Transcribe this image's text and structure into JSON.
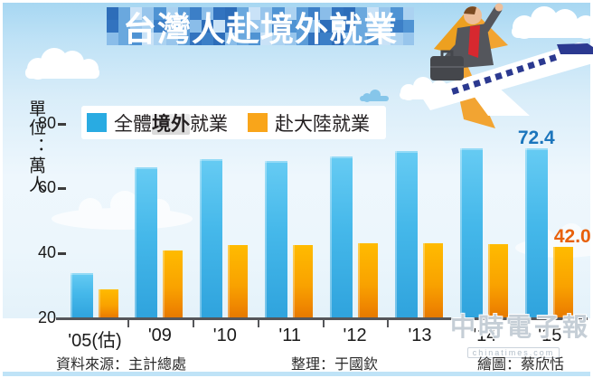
{
  "title": "台灣人赴境外就業",
  "y_axis": {
    "unit_label": "單位：萬人",
    "ticks": [
      80,
      60,
      40,
      20
    ]
  },
  "legend": {
    "items": [
      {
        "color": "#29abe2",
        "prefix": "全體",
        "emphasis": "境外",
        "suffix": "就業"
      },
      {
        "color": "#f9a51a",
        "prefix": "赴大陸就業",
        "emphasis": "",
        "suffix": ""
      }
    ]
  },
  "chart_data": {
    "type": "bar",
    "title": "台灣人赴境外就業",
    "categories": [
      "'05(估)",
      "'09",
      "'10",
      "'11",
      "'12",
      "'13",
      "'14",
      "'15"
    ],
    "series": [
      {
        "name": "全體境外就業",
        "color": "#45b8ea",
        "values": [
          34.0,
          66.5,
          69.0,
          68.5,
          70.0,
          71.5,
          72.4,
          72.4
        ]
      },
      {
        "name": "赴大陸就業",
        "color": "#f9a51a",
        "values": [
          29.0,
          41.0,
          42.5,
          42.5,
          43.0,
          43.2,
          42.8,
          42.0
        ]
      }
    ],
    "ylabel": "單位：萬人",
    "ylim": [
      20,
      80
    ],
    "grid": false,
    "legend_position": "top",
    "annotations": [
      {
        "text": "72.4",
        "series": 0,
        "category": "'15",
        "color": "#1b75bc"
      },
      {
        "text": "42.0",
        "series": 1,
        "category": "'15",
        "color": "#e8600a"
      }
    ]
  },
  "watermark": {
    "line1": "中時電子報",
    "line2": "chinatimes.com"
  },
  "footer": {
    "source": "資料來源：主計總處",
    "editor": "整理：于國欽",
    "illustrator": "繪圖：蔡欣恬"
  },
  "colors": {
    "banner_mosaic_blues": [
      "#2d6db9",
      "#3c7fc7",
      "#4f93d3",
      "#6aa8de",
      "#8abde9",
      "#abd2f1",
      "#c9e2f7",
      "#3273bf",
      "#5b9cd8",
      "#97c5ec"
    ],
    "sky_top": "#a7d7f2",
    "axis": "#55565a",
    "bottom_strip": "#bfe3f7"
  }
}
